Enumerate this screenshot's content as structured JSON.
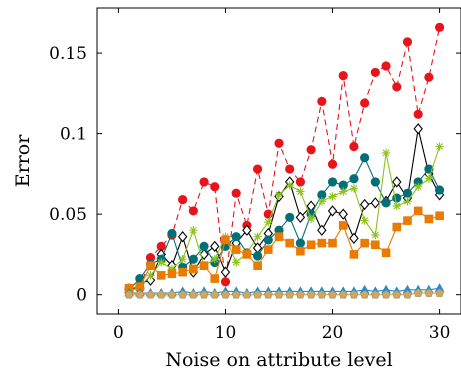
{
  "chart_data": {
    "type": "line",
    "xlabel": "Noise on attribute level",
    "ylabel": "Error",
    "xlim": [
      -2,
      32
    ],
    "ylim": [
      -0.012,
      0.178
    ],
    "xticks": [
      0,
      10,
      20,
      30
    ],
    "yticks": [
      0,
      0.05,
      0.1,
      0.15
    ],
    "xtick_labels": [
      "0",
      "10",
      "20",
      "30"
    ],
    "ytick_labels": [
      "0",
      "0.05",
      "0.1",
      "0.15"
    ],
    "x": [
      1,
      2,
      3,
      4,
      5,
      6,
      7,
      8,
      9,
      10,
      11,
      12,
      13,
      14,
      15,
      16,
      17,
      18,
      19,
      20,
      21,
      22,
      23,
      24,
      25,
      26,
      27,
      28,
      29,
      30
    ],
    "grid": false,
    "legend": "none",
    "series": [
      {
        "color": "#e8141c",
        "marker": "circle",
        "dash": "dashed",
        "values": [
          0.004,
          0.004,
          0.023,
          0.03,
          0.037,
          0.059,
          0.052,
          0.07,
          0.067,
          0.008,
          0.063,
          0.043,
          0.078,
          0.05,
          0.094,
          0.078,
          0.07,
          0.09,
          0.12,
          0.081,
          0.136,
          0.092,
          0.119,
          0.138,
          0.142,
          0.129,
          0.157,
          0.112,
          0.135,
          0.166
        ]
      },
      {
        "color": "#000000",
        "marker": "diamond",
        "dash": "solid",
        "values": [
          0.001,
          0.007,
          0.009,
          0.025,
          0.018,
          0.036,
          0.014,
          0.025,
          0.03,
          0.014,
          0.032,
          0.04,
          0.029,
          0.038,
          0.061,
          0.07,
          0.048,
          0.055,
          0.04,
          0.052,
          0.05,
          0.035,
          0.056,
          0.057,
          0.058,
          0.07,
          0.06,
          0.103,
          0.075,
          0.062
        ]
      },
      {
        "color": "#007076",
        "marker": "circle",
        "dash": "solid",
        "values": [
          0.003,
          0.01,
          0.019,
          0.022,
          0.038,
          0.017,
          0.022,
          0.03,
          0.02,
          0.03,
          0.036,
          0.026,
          0.024,
          0.034,
          0.04,
          0.048,
          0.032,
          0.05,
          0.062,
          0.07,
          0.068,
          0.072,
          0.085,
          0.07,
          0.057,
          0.06,
          0.063,
          0.07,
          0.078,
          0.065
        ]
      },
      {
        "color": "#8dc21f",
        "marker": "star",
        "dash": "solid",
        "values": [
          0.002,
          0.005,
          0.012,
          0.02,
          0.016,
          0.022,
          0.04,
          0.018,
          0.022,
          0.036,
          0.02,
          0.026,
          0.036,
          0.045,
          0.062,
          0.068,
          0.064,
          0.047,
          0.058,
          0.061,
          0.064,
          0.066,
          0.046,
          0.037,
          0.088,
          0.055,
          0.058,
          0.067,
          0.072,
          0.092
        ]
      },
      {
        "color": "#e87b00",
        "marker": "square",
        "dash": "solid",
        "values": [
          0.004,
          0.005,
          0.018,
          0.012,
          0.013,
          0.014,
          0.016,
          0.018,
          0.01,
          0.034,
          0.028,
          0.025,
          0.018,
          0.028,
          0.036,
          0.032,
          0.027,
          0.031,
          0.032,
          0.032,
          0.043,
          0.025,
          0.032,
          0.031,
          0.026,
          0.042,
          0.046,
          0.052,
          0.047,
          0.049
        ]
      },
      {
        "color": "#1f8dd6",
        "marker": "triangle",
        "dash": "solid",
        "values": [
          0.001,
          0.001,
          0.001,
          0.001,
          0.001,
          0.002,
          0.001,
          0.002,
          0.001,
          0.002,
          0.002,
          0.001,
          0.002,
          0.002,
          0.002,
          0.002,
          0.002,
          0.002,
          0.002,
          0.002,
          0.002,
          0.002,
          0.003,
          0.002,
          0.003,
          0.002,
          0.003,
          0.003,
          0.003,
          0.004
        ]
      },
      {
        "color": "#c9a86a",
        "marker": "pentagon",
        "dash": "solid",
        "values": [
          0.0,
          0.0,
          0.0,
          0.0,
          0.0,
          0.0,
          0.0,
          0.0,
          0.0,
          0.0,
          0.0,
          0.0,
          0.0,
          0.0,
          0.0,
          0.0,
          0.0,
          0.0,
          0.0,
          0.0,
          0.0,
          0.0,
          0.0,
          0.0,
          0.0,
          0.0,
          0.0,
          0.001,
          0.001,
          0.001
        ]
      }
    ]
  }
}
